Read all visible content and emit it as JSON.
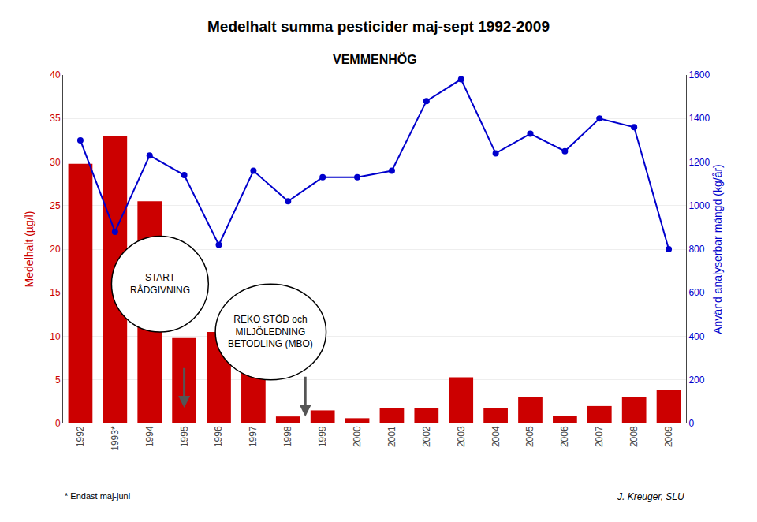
{
  "chart_data": {
    "type": "bar",
    "title": "Medelhalt summa pesticider maj-sept 1992-2009",
    "subtitle": "VEMMENHÖG",
    "ylabel": "Medelhalt (µg/l)",
    "y2label": "Använd analyserbar mängd (kg/år)",
    "note": "* Endast maj-juni",
    "credit": "J. Kreuger, SLU",
    "annotations": [
      [
        "START",
        "RÅDGIVNING"
      ],
      [
        "REKO STÖD och",
        "MILJÖLEDNING",
        "BETODLING (MBO)"
      ]
    ],
    "categories": [
      "1992",
      "1993*",
      "1994",
      "1995",
      "1996",
      "1997",
      "1998",
      "1999",
      "2000",
      "2001",
      "2002",
      "2003",
      "2004",
      "2005",
      "2006",
      "2007",
      "2008",
      "2009"
    ],
    "series": [
      {
        "type": "bar",
        "color": "#cc0000",
        "values": [
          29.8,
          33.0,
          25.5,
          9.8,
          10.5,
          7.0,
          0.8,
          1.5,
          0.6,
          1.8,
          1.8,
          5.3,
          1.8,
          3.0,
          0.9,
          2.0,
          3.0,
          3.8
        ]
      },
      {
        "type": "line",
        "axis": "y2",
        "color": "#0000cc",
        "marker": "circle",
        "line_style": "solid",
        "values": [
          1300,
          880,
          1230,
          1140,
          820,
          1160,
          1020,
          1130,
          1130,
          1160,
          1480,
          1580,
          1240,
          1330,
          1250,
          1400,
          1360,
          800
        ]
      }
    ],
    "ylim": [
      0,
      40
    ],
    "yticks": [
      0,
      5,
      10,
      15,
      20,
      25,
      30,
      35,
      40
    ],
    "y2lim": [
      0,
      1600
    ],
    "y2ticks": [
      0,
      200,
      400,
      600,
      800,
      1000,
      1200,
      1400,
      1600
    ],
    "grid": true
  }
}
